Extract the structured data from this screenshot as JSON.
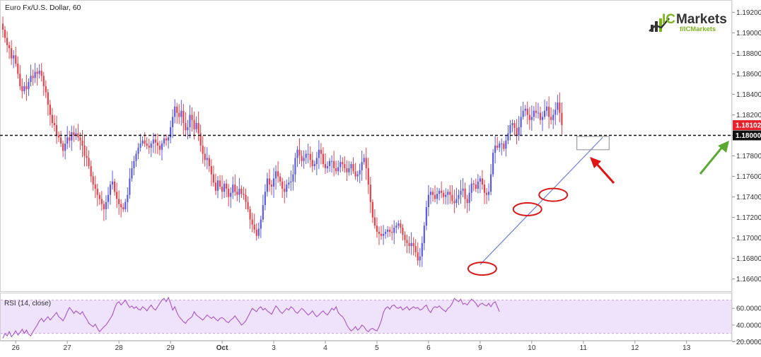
{
  "chart_data": {
    "type": "candlestick",
    "title": "Euro Fx/U.S. Dollar, 60",
    "timeframe": "60",
    "colors": {
      "up": "#5b5ce6",
      "down": "#e8424a",
      "rsi_line": "#a855c8",
      "rsi_band": "#efe2fb",
      "trendline": "#6e7fe0",
      "level": "#111111"
    },
    "price_axis": {
      "ylim": [
        1.1648,
        1.1932
      ],
      "ticks": [
        "1.19200",
        "1.19000",
        "1.18800",
        "1.18600",
        "1.18400",
        "1.18200",
        "1.18000",
        "1.17800",
        "1.17600",
        "1.17400",
        "1.17200",
        "1.17000",
        "1.16800",
        "1.16600"
      ],
      "tick_values": [
        1.192,
        1.19,
        1.188,
        1.186,
        1.184,
        1.182,
        1.18,
        1.178,
        1.176,
        1.174,
        1.172,
        1.17,
        1.168,
        1.166
      ]
    },
    "x_axis": {
      "labels": [
        "26",
        "27",
        "28",
        "29",
        "Oct",
        "3",
        "4",
        "5",
        "6",
        "9",
        "10",
        "11",
        "12",
        "13"
      ],
      "bar_index": [
        6,
        30,
        54,
        78,
        102,
        126,
        150,
        174,
        198,
        222,
        246,
        270,
        294,
        318
      ]
    },
    "last_price_tag": "1.18102",
    "level_tag": "1.18000",
    "level_value": 1.18,
    "trendline": {
      "from": [
        222,
        1.1674
      ],
      "to": [
        279,
        1.1798
      ]
    },
    "highlight_circles": [
      [
        223,
        1.167
      ],
      [
        244,
        1.1728
      ],
      [
        256,
        1.1742
      ]
    ],
    "target_box": {
      "bar_range": [
        267,
        282
      ],
      "price_range": [
        1.1786,
        1.1799
      ]
    },
    "rsi": {
      "label": "RSI (14, close)",
      "ylim": [
        22,
        78
      ],
      "levels": [
        70,
        30
      ],
      "ticks": [
        "60.0000",
        "40.0000",
        "20.0000"
      ],
      "tick_values": [
        60,
        40,
        20
      ]
    },
    "closes": [
      1.1903,
      1.1895,
      1.1888,
      1.1885,
      1.1875,
      1.1878,
      1.187,
      1.186,
      1.1848,
      1.1843,
      1.1848,
      1.1845,
      1.1852,
      1.1858,
      1.1856,
      1.1862,
      1.186,
      1.1863,
      1.1858,
      1.1848,
      1.1842,
      1.183,
      1.182,
      1.1812,
      1.181,
      1.18,
      1.1798,
      1.1792,
      1.1785,
      1.1792,
      1.1798,
      1.1795,
      1.1803,
      1.18,
      1.1802,
      1.1798,
      1.1795,
      1.179,
      1.178,
      1.1778,
      1.177,
      1.176,
      1.1752,
      1.1748,
      1.1742,
      1.1738,
      1.1733,
      1.1728,
      1.1735,
      1.1742,
      1.1752,
      1.1755,
      1.1745,
      1.1738,
      1.1733,
      1.173,
      1.1728,
      1.1735,
      1.1742,
      1.1758,
      1.1768,
      1.1775,
      1.1782,
      1.1788,
      1.1792,
      1.1795,
      1.1792,
      1.179,
      1.1788,
      1.1792,
      1.1796,
      1.1793,
      1.179,
      1.1786,
      1.1792,
      1.1797,
      1.1795,
      1.1798,
      1.1808,
      1.1818,
      1.1828,
      1.1822,
      1.1818,
      1.1824,
      1.1812,
      1.1805,
      1.1808,
      1.182,
      1.1815,
      1.1806,
      1.1812,
      1.1802,
      1.179,
      1.1782,
      1.1776,
      1.1778,
      1.177,
      1.1762,
      1.1754,
      1.1746,
      1.1756,
      1.175,
      1.1745,
      1.1753,
      1.1748,
      1.174,
      1.1744,
      1.1752,
      1.1745,
      1.1742,
      1.1748,
      1.1743,
      1.1742,
      1.1735,
      1.1728,
      1.1718,
      1.1713,
      1.1708,
      1.1702,
      1.1709,
      1.1718,
      1.1732,
      1.1745,
      1.1758,
      1.1752,
      1.175,
      1.1758,
      1.1765,
      1.176,
      1.1755,
      1.1748,
      1.1745,
      1.1752,
      1.1754,
      1.1755,
      1.1762,
      1.1778,
      1.1786,
      1.178,
      1.1775,
      1.1778,
      1.1782,
      1.1782,
      1.1776,
      1.177,
      1.1772,
      1.1778,
      1.1786,
      1.1782,
      1.1772,
      1.1768,
      1.177,
      1.1775,
      1.1775,
      1.1768,
      1.1765,
      1.1769,
      1.1774,
      1.1772,
      1.1768,
      1.1764,
      1.1768,
      1.1772,
      1.1765,
      1.176,
      1.1762,
      1.1766,
      1.1774,
      1.1778,
      1.1768,
      1.1752,
      1.1735,
      1.172,
      1.1712,
      1.1706,
      1.1704,
      1.1702,
      1.1704,
      1.1706,
      1.1708,
      1.1706,
      1.1705,
      1.171,
      1.1712,
      1.1714,
      1.171,
      1.1703,
      1.1698,
      1.1695,
      1.1692,
      1.1695,
      1.1692,
      1.1686,
      1.1678,
      1.1682,
      1.1695,
      1.1712,
      1.173,
      1.1742,
      1.1745,
      1.1742,
      1.1738,
      1.1743,
      1.1746,
      1.1744,
      1.174,
      1.1742,
      1.1745,
      1.1742,
      1.1736,
      1.1734,
      1.1738,
      1.1742,
      1.1746,
      1.1748,
      1.1738,
      1.1734,
      1.1744,
      1.1753,
      1.1752,
      1.1748,
      1.1755,
      1.1758,
      1.1752,
      1.1744,
      1.1742,
      1.1745,
      1.1762,
      1.1783,
      1.179,
      1.1788,
      1.1792,
      1.1792,
      1.1787,
      1.1795,
      1.1802,
      1.181,
      1.1812,
      1.1807,
      1.18,
      1.1808,
      1.1818,
      1.1824,
      1.1826,
      1.182,
      1.1815,
      1.1818,
      1.1824,
      1.1822,
      1.1822,
      1.1815,
      1.1818,
      1.1824,
      1.1828,
      1.1818,
      1.1815,
      1.182,
      1.1825,
      1.1832,
      1.1822,
      1.181
    ],
    "rsi_values": [
      24,
      30,
      27,
      32,
      26,
      29,
      33,
      28,
      31,
      35,
      30,
      34,
      29,
      27,
      32,
      36,
      40,
      45,
      48,
      44,
      47,
      50,
      46,
      49,
      52,
      55,
      50,
      48,
      45,
      50,
      56,
      61,
      58,
      54,
      57,
      55,
      53,
      56,
      51,
      47,
      42,
      40,
      38,
      41,
      36,
      32,
      35,
      38,
      40,
      44,
      48,
      52,
      60,
      66,
      68,
      64,
      67,
      70,
      65,
      61,
      63,
      60,
      62,
      59,
      58,
      62,
      60,
      57,
      61,
      64,
      60,
      58,
      62,
      66,
      70,
      72,
      68,
      73,
      66,
      58,
      62,
      55,
      50,
      47,
      44,
      42,
      46,
      48,
      50,
      56,
      52,
      50,
      48,
      46,
      49,
      52,
      50,
      48,
      50,
      47,
      45,
      48,
      49,
      47,
      44,
      43,
      46,
      48,
      51,
      47,
      44,
      40,
      42,
      45,
      50,
      55,
      60,
      58,
      56,
      60,
      62,
      58,
      60,
      57,
      55,
      53,
      58,
      63,
      60,
      56,
      54,
      57,
      60,
      58,
      62,
      60,
      56,
      54,
      57,
      60,
      58,
      55,
      52,
      54,
      57,
      53,
      50,
      52,
      55,
      57,
      54,
      52,
      56,
      60,
      58,
      62,
      55,
      52,
      50,
      46,
      40,
      36,
      33,
      35,
      38,
      34,
      36,
      40,
      38,
      34,
      32,
      35,
      36,
      34,
      33,
      38,
      45,
      55,
      60,
      62,
      59,
      63,
      64,
      61,
      60,
      62,
      58,
      60,
      62,
      58,
      60,
      62,
      60,
      61,
      58,
      59,
      62,
      64,
      58,
      55,
      60,
      62,
      61,
      63,
      60,
      58,
      56,
      60,
      62,
      66,
      72,
      70,
      68,
      71,
      65,
      66,
      64,
      68,
      71,
      69,
      66,
      62,
      65,
      66,
      64,
      63,
      66,
      62,
      66,
      68,
      62,
      56
    ]
  },
  "logo": {
    "brand_prefix": "IC",
    "brand_suffix": "Markets",
    "handle": "f/ICMarkets"
  },
  "annotations": {
    "red_arrow": "pointing up-left toward 1.18000 retest",
    "green_arrow": "pointing up-right toward 1.18000 level"
  }
}
